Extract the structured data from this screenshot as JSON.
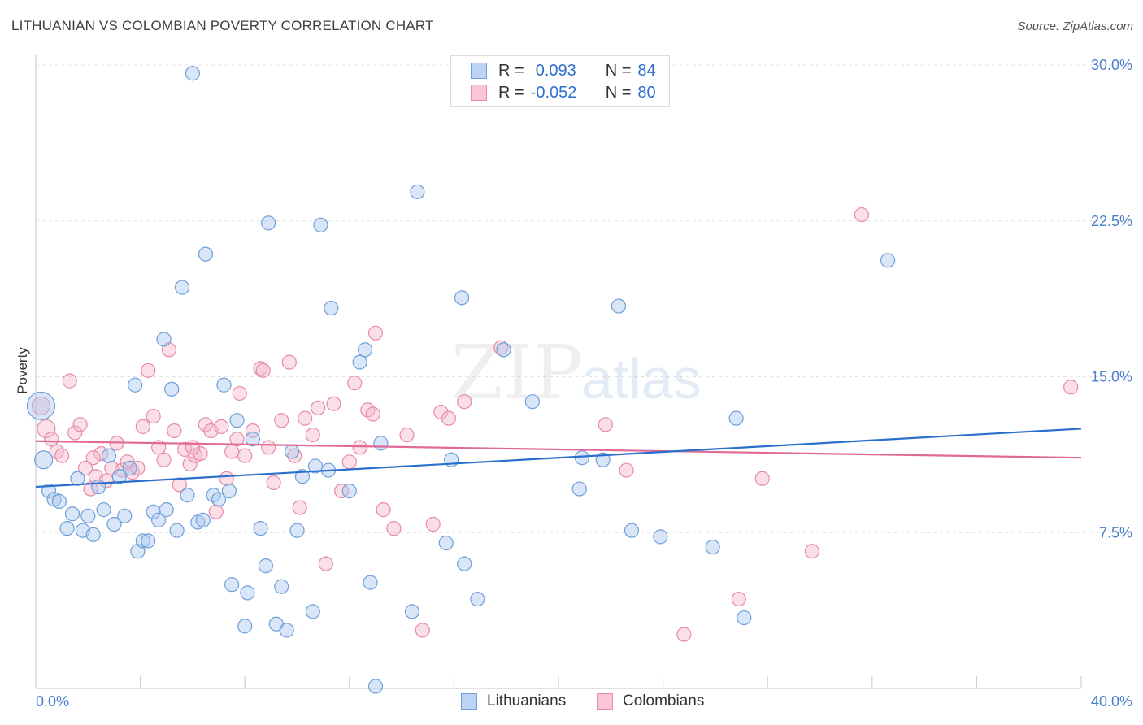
{
  "header": {
    "title": "LITHUANIAN VS COLOMBIAN POVERTY CORRELATION CHART",
    "source": "Source: ZipAtlas.com"
  },
  "watermark": {
    "zip": "ZIP",
    "atlas": "atlas"
  },
  "legend": {
    "rows": [
      {
        "r_label": "R =",
        "r_value": "0.093",
        "n_label": "N =",
        "n_value": "84"
      },
      {
        "r_label": "R =",
        "r_value": "-0.052",
        "n_label": "N =",
        "n_value": "80"
      }
    ]
  },
  "bottom_legend": {
    "lithuanians": "Lithuanians",
    "colombians": "Colombians"
  },
  "colors": {
    "blue_fill": "#a9c8f0",
    "blue_stroke": "#6f9fd8",
    "blue_line": "#2b6fcc",
    "pink_fill": "#f5b8cb",
    "pink_stroke": "#e88aa8",
    "pink_line": "#e06a96",
    "tick_text": "#4a7fcf",
    "grid": "#e3e3e3"
  },
  "chart_data": {
    "type": "scatter",
    "title": "LITHUANIAN VS COLOMBIAN POVERTY CORRELATION CHART",
    "xlabel": "",
    "ylabel": "Poverty",
    "xlim": [
      0,
      40
    ],
    "ylim": [
      0,
      30
    ],
    "x_tick_labels": [
      "0.0%",
      "40.0%"
    ],
    "y_ticks": [
      7.5,
      15.0,
      22.5,
      30.0
    ],
    "y_tick_labels": [
      "7.5%",
      "15.0%",
      "22.5%",
      "30.0%"
    ],
    "grid": "horizontal dashed",
    "legend_position": "top-center",
    "series": [
      {
        "name": "Lithuanians",
        "r": 0.093,
        "n": 84,
        "trend": {
          "x0": 0,
          "y0": 9.7,
          "x1": 40,
          "y1": 12.5
        },
        "points": [
          [
            0.2,
            13.6,
            3
          ],
          [
            0.3,
            11.0,
            2
          ],
          [
            0.5,
            9.5,
            1
          ],
          [
            0.7,
            9.1,
            1
          ],
          [
            0.9,
            9.0,
            1
          ],
          [
            1.2,
            7.7,
            1
          ],
          [
            1.4,
            8.4,
            1
          ],
          [
            1.6,
            10.1,
            1
          ],
          [
            1.8,
            7.6,
            1
          ],
          [
            2.0,
            8.3,
            1
          ],
          [
            2.2,
            7.4,
            1
          ],
          [
            2.4,
            9.7,
            1
          ],
          [
            2.6,
            8.6,
            1
          ],
          [
            2.8,
            11.2,
            1
          ],
          [
            3.0,
            7.9,
            1
          ],
          [
            3.2,
            10.2,
            1
          ],
          [
            3.4,
            8.3,
            1
          ],
          [
            3.6,
            10.6,
            1
          ],
          [
            3.8,
            14.6,
            1
          ],
          [
            3.9,
            6.6,
            1
          ],
          [
            4.1,
            7.1,
            1
          ],
          [
            4.3,
            7.1,
            1
          ],
          [
            4.5,
            8.5,
            1
          ],
          [
            4.7,
            8.1,
            1
          ],
          [
            4.9,
            16.8,
            1
          ],
          [
            5.0,
            8.6,
            1
          ],
          [
            5.2,
            14.4,
            1
          ],
          [
            5.4,
            7.6,
            1
          ],
          [
            5.6,
            19.3,
            1
          ],
          [
            5.8,
            9.3,
            1
          ],
          [
            6.0,
            29.6,
            1
          ],
          [
            6.2,
            8.0,
            1
          ],
          [
            6.4,
            8.1,
            1
          ],
          [
            6.5,
            20.9,
            1
          ],
          [
            6.8,
            9.3,
            1
          ],
          [
            7.0,
            9.1,
            1
          ],
          [
            7.2,
            14.6,
            1
          ],
          [
            7.4,
            9.5,
            1
          ],
          [
            7.5,
            5.0,
            1
          ],
          [
            7.7,
            12.9,
            1
          ],
          [
            8.0,
            3.0,
            1
          ],
          [
            8.1,
            4.6,
            1
          ],
          [
            8.3,
            12.0,
            1
          ],
          [
            8.6,
            7.7,
            1
          ],
          [
            8.8,
            5.9,
            1
          ],
          [
            8.9,
            22.4,
            1
          ],
          [
            9.2,
            3.1,
            1
          ],
          [
            9.4,
            4.9,
            1
          ],
          [
            9.6,
            2.8,
            1
          ],
          [
            9.8,
            11.4,
            1
          ],
          [
            10.0,
            7.6,
            1
          ],
          [
            10.2,
            10.2,
            1
          ],
          [
            10.6,
            3.7,
            1
          ],
          [
            10.7,
            10.7,
            1
          ],
          [
            10.9,
            22.3,
            1
          ],
          [
            11.2,
            10.5,
            1
          ],
          [
            11.3,
            18.3,
            1
          ],
          [
            12.0,
            9.5,
            1
          ],
          [
            12.4,
            15.7,
            1
          ],
          [
            12.6,
            16.3,
            1
          ],
          [
            12.8,
            5.1,
            1
          ],
          [
            13.0,
            0.1,
            1
          ],
          [
            13.2,
            11.8,
            1
          ],
          [
            14.4,
            3.7,
            1
          ],
          [
            14.6,
            23.9,
            1
          ],
          [
            15.7,
            7.0,
            1
          ],
          [
            15.9,
            11.0,
            1
          ],
          [
            16.3,
            18.8,
            1
          ],
          [
            16.4,
            6.0,
            1
          ],
          [
            16.9,
            4.3,
            1
          ],
          [
            17.9,
            16.3,
            1
          ],
          [
            19.0,
            13.8,
            1
          ],
          [
            20.8,
            9.6,
            1
          ],
          [
            20.9,
            11.1,
            1
          ],
          [
            21.7,
            11.0,
            1
          ],
          [
            22.3,
            18.4,
            1
          ],
          [
            22.8,
            7.6,
            1
          ],
          [
            23.9,
            7.3,
            1
          ],
          [
            25.9,
            6.8,
            1
          ],
          [
            26.8,
            13.0,
            1
          ],
          [
            27.1,
            3.4,
            1
          ],
          [
            32.6,
            20.6,
            1
          ]
        ]
      },
      {
        "name": "Colombians",
        "r": -0.052,
        "n": 80,
        "trend": {
          "x0": 0,
          "y0": 11.9,
          "x1": 40,
          "y1": 11.1
        },
        "points": [
          [
            0.2,
            13.6,
            2
          ],
          [
            0.4,
            12.5,
            2
          ],
          [
            0.6,
            12.0,
            1
          ],
          [
            0.8,
            11.4,
            1
          ],
          [
            1.0,
            11.2,
            1
          ],
          [
            1.3,
            14.8,
            1
          ],
          [
            1.5,
            12.3,
            1
          ],
          [
            1.7,
            12.7,
            1
          ],
          [
            1.9,
            10.6,
            1
          ],
          [
            2.1,
            9.6,
            1
          ],
          [
            2.3,
            10.2,
            1
          ],
          [
            2.5,
            11.3,
            1
          ],
          [
            2.7,
            10.0,
            1
          ],
          [
            2.9,
            10.6,
            1
          ],
          [
            3.1,
            11.8,
            1
          ],
          [
            3.3,
            10.5,
            1
          ],
          [
            3.5,
            10.9,
            1
          ],
          [
            3.7,
            10.4,
            1
          ],
          [
            3.9,
            10.6,
            1
          ],
          [
            4.1,
            12.6,
            1
          ],
          [
            4.3,
            15.3,
            1
          ],
          [
            4.5,
            13.1,
            1
          ],
          [
            4.7,
            11.6,
            1
          ],
          [
            4.9,
            11.0,
            1
          ],
          [
            5.1,
            16.3,
            1
          ],
          [
            5.3,
            12.4,
            1
          ],
          [
            5.5,
            9.8,
            1
          ],
          [
            5.7,
            11.5,
            1
          ],
          [
            5.9,
            10.8,
            1
          ],
          [
            6.1,
            11.2,
            1
          ],
          [
            6.3,
            11.3,
            1
          ],
          [
            6.5,
            12.7,
            1
          ],
          [
            6.7,
            12.4,
            1
          ],
          [
            6.9,
            8.5,
            1
          ],
          [
            7.1,
            12.6,
            1
          ],
          [
            7.3,
            10.1,
            1
          ],
          [
            7.5,
            11.4,
            1
          ],
          [
            7.7,
            12.0,
            1
          ],
          [
            7.8,
            14.2,
            1
          ],
          [
            8.0,
            11.2,
            1
          ],
          [
            8.3,
            12.4,
            1
          ],
          [
            8.6,
            15.4,
            1
          ],
          [
            8.9,
            11.6,
            1
          ],
          [
            9.1,
            9.9,
            1
          ],
          [
            9.4,
            12.9,
            1
          ],
          [
            9.7,
            15.7,
            1
          ],
          [
            9.9,
            11.2,
            1
          ],
          [
            10.1,
            8.7,
            1
          ],
          [
            10.3,
            13.0,
            1
          ],
          [
            10.6,
            12.2,
            1
          ],
          [
            10.8,
            13.5,
            1
          ],
          [
            11.1,
            6.0,
            1
          ],
          [
            11.4,
            13.7,
            1
          ],
          [
            11.7,
            9.5,
            1
          ],
          [
            12.0,
            10.9,
            1
          ],
          [
            12.2,
            14.7,
            1
          ],
          [
            12.4,
            11.6,
            1
          ],
          [
            12.7,
            13.4,
            1
          ],
          [
            13.0,
            17.1,
            1
          ],
          [
            13.3,
            8.6,
            1
          ],
          [
            13.7,
            7.7,
            1
          ],
          [
            14.2,
            12.2,
            1
          ],
          [
            14.8,
            2.8,
            1
          ],
          [
            15.2,
            7.9,
            1
          ],
          [
            15.5,
            13.3,
            1
          ],
          [
            15.8,
            13.0,
            1
          ],
          [
            16.4,
            13.8,
            1
          ],
          [
            17.8,
            16.4,
            1
          ],
          [
            21.8,
            12.7,
            1
          ],
          [
            22.6,
            10.5,
            1
          ],
          [
            24.8,
            2.6,
            1
          ],
          [
            26.9,
            4.3,
            1
          ],
          [
            27.8,
            10.1,
            1
          ],
          [
            29.7,
            6.6,
            1
          ],
          [
            31.6,
            22.8,
            1
          ],
          [
            39.6,
            14.5,
            1
          ],
          [
            2.2,
            11.1,
            1
          ],
          [
            6.0,
            11.6,
            1
          ],
          [
            8.7,
            15.3,
            1
          ],
          [
            12.9,
            13.2,
            1
          ]
        ]
      }
    ]
  }
}
